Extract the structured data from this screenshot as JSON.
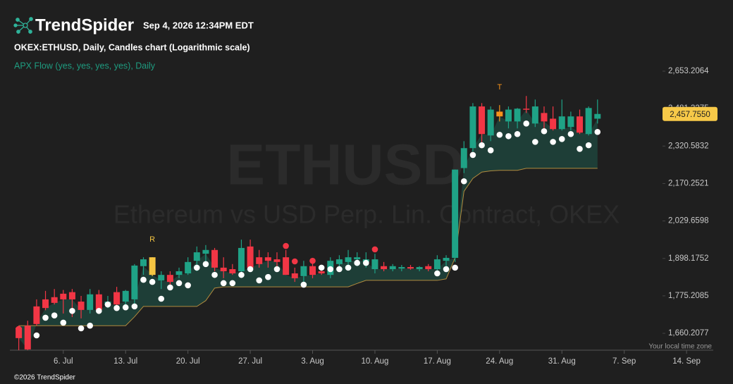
{
  "header": {
    "brand": "TrendSpider",
    "timestamp": "Sep 4, 2026 12:34PM EDT",
    "copyright": "©2026 TrendSpider"
  },
  "chart_data": {
    "type": "candlestick",
    "title": "OKEX:ETHUSD, Daily, Candles chart (Logarithmic scale)",
    "indicator_label": "APX Flow (yes, yes, yes, yes), Daily",
    "watermark": "ETHUSD",
    "watermark_subtitle": "Ethereum vs USD Perp. Lin. Contract, OKEX",
    "timezone_note": "Your local time zone",
    "log_scale": true,
    "grid": false,
    "up_color": "#1fa286",
    "down_color": "#f23645",
    "x": [
      "2026-07-01",
      "2026-07-02",
      "2026-07-03",
      "2026-07-04",
      "2026-07-05",
      "2026-07-06",
      "2026-07-07",
      "2026-07-08",
      "2026-07-09",
      "2026-07-10",
      "2026-07-11",
      "2026-07-12",
      "2026-07-13",
      "2026-07-14",
      "2026-07-15",
      "2026-07-16",
      "2026-07-17",
      "2026-07-18",
      "2026-07-19",
      "2026-07-20",
      "2026-07-21",
      "2026-07-22",
      "2026-07-23",
      "2026-07-24",
      "2026-07-25",
      "2026-07-26",
      "2026-07-27",
      "2026-07-28",
      "2026-07-29",
      "2026-07-30",
      "2026-07-31",
      "2026-08-01",
      "2026-08-02",
      "2026-08-03",
      "2026-08-04",
      "2026-08-05",
      "2026-08-06",
      "2026-08-07",
      "2026-08-08",
      "2026-08-09",
      "2026-08-10",
      "2026-08-11",
      "2026-08-12",
      "2026-08-13",
      "2026-08-14",
      "2026-08-15",
      "2026-08-16",
      "2026-08-17",
      "2026-08-18",
      "2026-08-19",
      "2026-08-20",
      "2026-08-21",
      "2026-08-22",
      "2026-08-23",
      "2026-08-24",
      "2026-08-25",
      "2026-08-26",
      "2026-08-27",
      "2026-08-28",
      "2026-08-29",
      "2026-08-30",
      "2026-08-31",
      "2026-09-01",
      "2026-09-02",
      "2026-09-03",
      "2026-09-04"
    ],
    "open": [
      1677,
      1683,
      1742,
      1764,
      1771,
      1782,
      1787,
      1757,
      1731,
      1780,
      1746,
      1787,
      1757,
      1764,
      1872,
      1843,
      1825,
      1843,
      1843,
      1848,
      1890,
      1914,
      1927,
      1867,
      1862,
      1855,
      1939,
      1902,
      1902,
      1895,
      1902,
      1848,
      1839,
      1872,
      1855,
      1843,
      1879,
      1886,
      1895,
      1886,
      1862,
      1872,
      1862,
      1864,
      1869,
      1862,
      1872,
      1862,
      1890,
      1900,
      2231,
      2312,
      2491,
      2365,
      2447,
      2425,
      2425,
      2481,
      2416,
      2462,
      2437,
      2392,
      2401,
      2447,
      2371,
      2437
    ],
    "high": [
      1683,
      1698,
      1764,
      1791,
      1797,
      1794,
      1797,
      1775,
      1797,
      1794,
      1775,
      1804,
      1794,
      1879,
      1902,
      1902,
      1855,
      1855,
      1867,
      1902,
      1939,
      1944,
      1934,
      1902,
      1879,
      1963,
      1963,
      1927,
      1919,
      1919,
      1927,
      1867,
      1890,
      1886,
      1867,
      1902,
      1909,
      1927,
      1919,
      1919,
      1914,
      1886,
      1879,
      1876,
      1876,
      1872,
      1879,
      1909,
      1909,
      2225,
      2341,
      2506,
      2506,
      2491,
      2497,
      2491,
      2484,
      2538,
      2522,
      2491,
      2491,
      2522,
      2468,
      2477,
      2491,
      2522
    ],
    "low": [
      1611,
      1611,
      1683,
      1730,
      1748,
      1720,
      1709,
      1705,
      1720,
      1720,
      1737,
      1731,
      1731,
      1748,
      1843,
      1839,
      1797,
      1797,
      1832,
      1843,
      1855,
      1886,
      1855,
      1832,
      1843,
      1843,
      1855,
      1867,
      1867,
      1867,
      1843,
      1820,
      1809,
      1832,
      1843,
      1832,
      1855,
      1867,
      1872,
      1867,
      1848,
      1855,
      1855,
      1855,
      1860,
      1855,
      1855,
      1848,
      1872,
      1886,
      2211,
      2298,
      2312,
      2341,
      2425,
      2395,
      2395,
      2462,
      2401,
      2371,
      2386,
      2386,
      2386,
      2371,
      2365,
      2416
    ],
    "close": [
      1646,
      1613,
      1688,
      1737,
      1753,
      1764,
      1764,
      1731,
      1780,
      1731,
      1757,
      1748,
      1791,
      1874,
      1895,
      1902,
      1843,
      1820,
      1855,
      1886,
      1919,
      1927,
      1867,
      1855,
      1848,
      1934,
      1867,
      1879,
      1890,
      1886,
      1843,
      1832,
      1872,
      1843,
      1848,
      1890,
      1895,
      1902,
      1902,
      1895,
      1895,
      1862,
      1872,
      1869,
      1864,
      1869,
      1862,
      1895,
      1900,
      2225,
      2312,
      2491,
      2371,
      2477,
      2468,
      2477,
      2481,
      2477,
      2491,
      2425,
      2392,
      2447,
      2447,
      2377,
      2484,
      2457.755
    ],
    "last_price_label": "2,457.7550",
    "dots": {
      "color": "#ffffff",
      "red_color": "#f23645",
      "values": [
        1673,
        null,
        1654,
        1707,
        1714,
        1692,
        1728,
        1675,
        1683,
        1728,
        1748,
        1737,
        1739,
        1742,
        1827,
        1820,
        1766,
        1802,
        1816,
        1809,
        1867,
        1879,
        1843,
        1816,
        1816,
        1843,
        1862,
        1825,
        1836,
        1862,
        1941,
        1888,
        1811,
        1890,
        1867,
        1862,
        1862,
        1867,
        1883,
        1883,
        1929,
        null,
        null,
        null,
        null,
        null,
        null,
        1848,
        1862,
        1867,
        2179,
        2284,
        2324,
        2303,
        2368,
        2362,
        2371,
        2416,
        2338,
        2383,
        2338,
        2350,
        2371,
        2309,
        2324,
        2380
      ],
      "red": [
        "2026-07-01",
        "2026-07-31",
        "2026-08-01",
        "2026-08-03",
        "2026-08-10"
      ]
    },
    "band": {
      "color": "#b08a3e",
      "fill": "#1f4a40",
      "lower": [
        1683,
        1683,
        1683,
        1683,
        1683,
        1683,
        1683,
        1683,
        1683,
        1683,
        1683,
        1683,
        1683,
        1710,
        1742,
        1742,
        1742,
        1742,
        1742,
        1742,
        1742,
        1760,
        1800,
        1804,
        1804,
        1804,
        1804,
        1804,
        1804,
        1804,
        1804,
        1804,
        1804,
        1804,
        1804,
        1804,
        1804,
        1804,
        1815,
        1825,
        1825,
        1825,
        1825,
        1825,
        1825,
        1825,
        1825,
        1825,
        1830,
        1900,
        2140,
        2190,
        2215,
        2220,
        2222,
        2222,
        2222,
        2230,
        2230,
        2230,
        2230,
        2230,
        2230,
        2230,
        2230,
        2230
      ]
    },
    "markers": [
      {
        "x": "2026-07-16",
        "text": "R",
        "color": "#f5c542"
      },
      {
        "x": "2026-08-24",
        "text": "T",
        "color": "#f7931a"
      }
    ],
    "xlim": [
      "2026-06-30",
      "2026-09-17"
    ],
    "xticks": [
      {
        "value": "2026-07-06",
        "label": "6. Jul"
      },
      {
        "value": "2026-07-13",
        "label": "13. Jul"
      },
      {
        "value": "2026-07-20",
        "label": "20. Jul"
      },
      {
        "value": "2026-07-27",
        "label": "27. Jul"
      },
      {
        "value": "2026-08-03",
        "label": "3. Aug"
      },
      {
        "value": "2026-08-10",
        "label": "10. Aug"
      },
      {
        "value": "2026-08-17",
        "label": "17. Aug"
      },
      {
        "value": "2026-08-24",
        "label": "24. Aug"
      },
      {
        "value": "2026-08-31",
        "label": "31. Aug"
      },
      {
        "value": "2026-09-07",
        "label": "7. Sep"
      },
      {
        "value": "2026-09-14",
        "label": "14. Sep"
      }
    ],
    "ylim": [
      1610.8,
      2707.3
    ],
    "yticks": [
      {
        "value": 1660.2077,
        "label": "1,660.2077"
      },
      {
        "value": 1775.2085,
        "label": "1,775.2085"
      },
      {
        "value": 1898.1752,
        "label": "1,898.1752"
      },
      {
        "value": 2029.6598,
        "label": "2,029.6598"
      },
      {
        "value": 2170.2521,
        "label": "2,170.2521"
      },
      {
        "value": 2320.5832,
        "label": "2,320.5832"
      },
      {
        "value": 2481.3275,
        "label": "2,481.3275"
      },
      {
        "value": 2653.2064,
        "label": "2,653.2064"
      }
    ]
  }
}
